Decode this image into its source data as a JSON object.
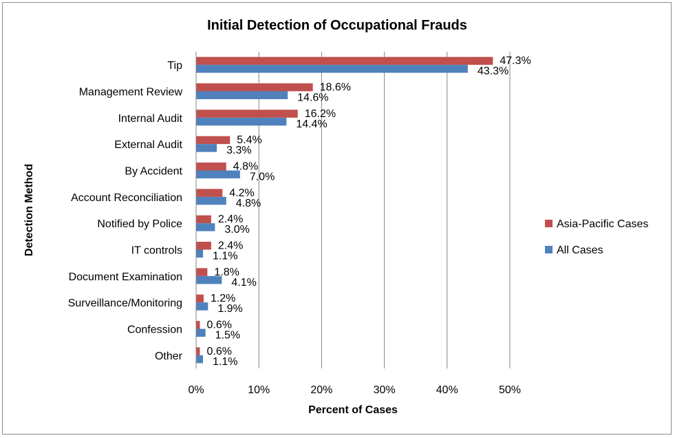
{
  "chart_data": {
    "type": "bar",
    "orientation": "horizontal",
    "title": "Initial Detection of Occupational Frauds",
    "xlabel": "Percent of Cases",
    "ylabel": "Detection Method",
    "xlim": [
      0,
      50
    ],
    "xticks": [
      0,
      10,
      20,
      30,
      40,
      50
    ],
    "xtick_labels": [
      "0%",
      "10%",
      "20%",
      "30%",
      "40%",
      "50%"
    ],
    "grid": true,
    "legend_position": "right",
    "categories": [
      "Tip",
      "Management Review",
      "Internal Audit",
      "External Audit",
      "By Accident",
      "Account Reconciliation",
      "Notified by Police",
      "IT controls",
      "Document Examination",
      "Surveillance/Monitoring",
      "Confession",
      "Other"
    ],
    "series": [
      {
        "name": "Asia-Pacific Cases",
        "color": "#c0504d",
        "values": [
          47.3,
          18.6,
          16.2,
          5.4,
          4.8,
          4.2,
          2.4,
          2.4,
          1.8,
          1.2,
          0.6,
          0.6
        ],
        "labels": [
          "47.3%",
          "18.6%",
          "16.2%",
          "5.4%",
          "4.8%",
          "4.2%",
          "2.4%",
          "2.4%",
          "1.8%",
          "1.2%",
          "0.6%",
          "0.6%"
        ]
      },
      {
        "name": "All Cases",
        "color": "#4f81bd",
        "values": [
          43.3,
          14.6,
          14.4,
          3.3,
          7.0,
          4.8,
          3.0,
          1.1,
          4.1,
          1.9,
          1.5,
          1.1
        ],
        "labels": [
          "43.3%",
          "14.6%",
          "14.4%",
          "3.3%",
          "7.0%",
          "4.8%",
          "3.0%",
          "1.1%",
          "4.1%",
          "1.9%",
          "1.5%",
          "1.1%"
        ]
      }
    ]
  }
}
